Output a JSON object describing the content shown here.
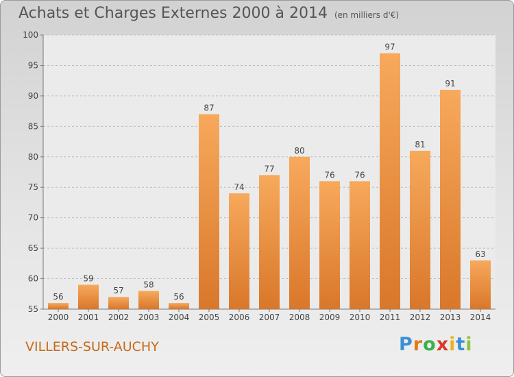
{
  "title": "Achats et Charges Externes 2000 à 2014",
  "unit": "(en milliers d'€)",
  "commune": "VILLERS-SUR-AUCHY",
  "brand": {
    "letters": [
      "P",
      "r",
      "o",
      "x",
      "i",
      "t",
      "i"
    ],
    "colors": [
      "#3a8fd6",
      "#e07a18",
      "#3ab04a",
      "#d93a2a",
      "#e9b320",
      "#3a8fd6",
      "#8cc63f"
    ]
  },
  "chart_data": {
    "type": "bar",
    "categories": [
      "2000",
      "2001",
      "2002",
      "2003",
      "2004",
      "2005",
      "2006",
      "2007",
      "2008",
      "2009",
      "2010",
      "2011",
      "2012",
      "2013",
      "2014"
    ],
    "values": [
      56,
      59,
      57,
      58,
      56,
      87,
      74,
      77,
      80,
      76,
      76,
      97,
      81,
      91,
      63
    ],
    "ylim": [
      55,
      100
    ],
    "yticks": [
      55,
      60,
      65,
      70,
      75,
      80,
      85,
      90,
      95,
      100
    ],
    "grid": true,
    "colors": {
      "bar_light": "#f7a95c",
      "bar_dark": "#d9772a",
      "grid": "#bdbdbd",
      "text": "#444444"
    }
  }
}
